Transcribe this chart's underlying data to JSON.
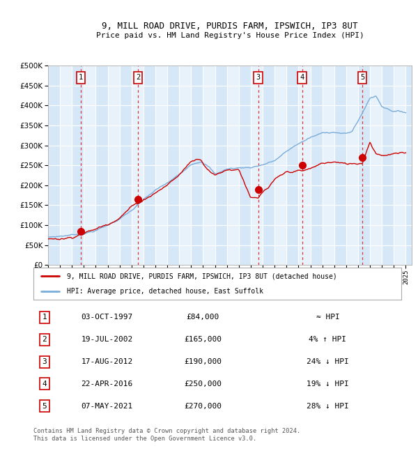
{
  "title1": "9, MILL ROAD DRIVE, PURDIS FARM, IPSWICH, IP3 8UT",
  "title2": "Price paid vs. HM Land Registry's House Price Index (HPI)",
  "ylim": [
    0,
    500000
  ],
  "yticks": [
    0,
    50000,
    100000,
    150000,
    200000,
    250000,
    300000,
    350000,
    400000,
    450000,
    500000
  ],
  "ytick_labels": [
    "£0",
    "£50K",
    "£100K",
    "£150K",
    "£200K",
    "£250K",
    "£300K",
    "£350K",
    "£400K",
    "£450K",
    "£500K"
  ],
  "xlim_start": 1995.0,
  "xlim_end": 2025.5,
  "background_color": "#ffffff",
  "plot_bg_color": "#d6e8f7",
  "alt_bg_color": "#e8f2fb",
  "grid_color": "#ffffff",
  "sale_dates": [
    1997.75,
    2002.54,
    2012.63,
    2016.31,
    2021.36
  ],
  "sale_prices": [
    84000,
    165000,
    190000,
    250000,
    270000
  ],
  "sale_labels": [
    "1",
    "2",
    "3",
    "4",
    "5"
  ],
  "sale_color": "#cc0000",
  "hpi_color": "#7aacda",
  "vline_color": "#dd3333",
  "legend_label_red": "9, MILL ROAD DRIVE, PURDIS FARM, IPSWICH, IP3 8UT (detached house)",
  "legend_label_blue": "HPI: Average price, detached house, East Suffolk",
  "table_rows": [
    [
      "1",
      "03-OCT-1997",
      "£84,000",
      "≈ HPI"
    ],
    [
      "2",
      "19-JUL-2002",
      "£165,000",
      "4% ↑ HPI"
    ],
    [
      "3",
      "17-AUG-2012",
      "£190,000",
      "24% ↓ HPI"
    ],
    [
      "4",
      "22-APR-2016",
      "£250,000",
      "19% ↓ HPI"
    ],
    [
      "5",
      "07-MAY-2021",
      "£270,000",
      "28% ↓ HPI"
    ]
  ],
  "footnote": "Contains HM Land Registry data © Crown copyright and database right 2024.\nThis data is licensed under the Open Government Licence v3.0."
}
